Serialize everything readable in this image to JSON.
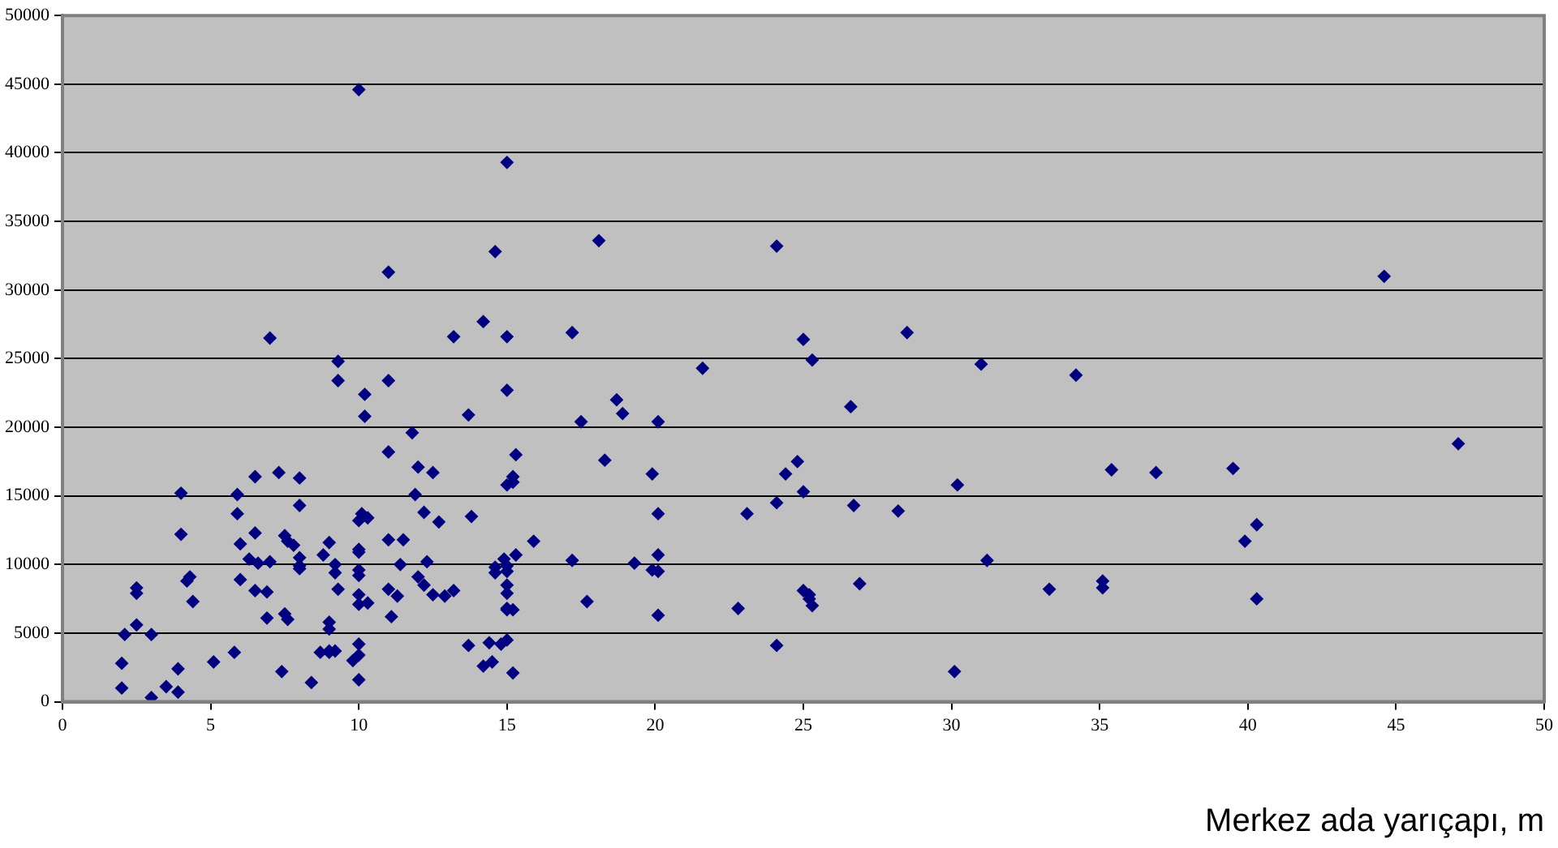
{
  "chart_data": {
    "type": "scatter",
    "xlabel": "Merkez ada yarıçapı, m",
    "color": "#000080",
    "marker": "diamond",
    "grid": "y",
    "legend": false,
    "xlim": [
      0,
      50
    ],
    "xticks": [
      0,
      5,
      10,
      15,
      20,
      25,
      30,
      35,
      40,
      45,
      50
    ],
    "ylim": [
      0,
      50000
    ],
    "yticks": [
      0,
      5000,
      10000,
      15000,
      20000,
      25000,
      30000,
      35000,
      40000,
      45000,
      50000
    ],
    "x": [
      2,
      2,
      2.1,
      2.5,
      2.5,
      2.5,
      3,
      3,
      3.5,
      3.9,
      3.9,
      4,
      4,
      4.2,
      4.3,
      4.4,
      5.1,
      5.8,
      5.9,
      5.9,
      6,
      6,
      6.3,
      6.5,
      6.5,
      6.6,
      6.5,
      6.9,
      6.9,
      7,
      7,
      7.3,
      7.4,
      7.5,
      7.6,
      7.6,
      7.5,
      7.8,
      8,
      8,
      8,
      8,
      8,
      8.4,
      8.7,
      8.8,
      9,
      9,
      9,
      9,
      9,
      9.2,
      9.2,
      9.3,
      9.2,
      9.3,
      9.3,
      9.8,
      10,
      10,
      10,
      10,
      10,
      10,
      10,
      10,
      10,
      10,
      10,
      10.1,
      10.2,
      10.2,
      10.3,
      10.3,
      11,
      11,
      11,
      11,
      11,
      11.3,
      11.1,
      11.4,
      11.5,
      11.8,
      11.9,
      12,
      12,
      12.2,
      12.3,
      12.2,
      12.5,
      12.5,
      12.7,
      12.9,
      13.2,
      13.2,
      13.7,
      13.7,
      13.8,
      14.2,
      14.2,
      14.4,
      14.5,
      14.6,
      14.6,
      14.6,
      14.9,
      15,
      15,
      15,
      15,
      15,
      15,
      15,
      15,
      15,
      15,
      15,
      14.8,
      15.2,
      15.2,
      15.2,
      15.3,
      15.2,
      15.3,
      15.9,
      17.2,
      17.2,
      17.5,
      17.7,
      18.1,
      18.3,
      18.7,
      18.9,
      19.3,
      19.9,
      19.9,
      20.1,
      20.1,
      20.1,
      20.1,
      20.1,
      21.6,
      22.8,
      23.1,
      24.1,
      24.1,
      24.1,
      24.4,
      24.8,
      25,
      25,
      25,
      25.2,
      25.2,
      25.3,
      25.3,
      26.6,
      26.7,
      26.9,
      28.2,
      28.5,
      30.1,
      30.2,
      31,
      31.2,
      33.3,
      34.2,
      35.1,
      35.1,
      35.4,
      36.9,
      39.5,
      39.9,
      40.3,
      40.3,
      44.6,
      47.1
    ],
    "values": [
      2800,
      1000,
      4900,
      7900,
      8300,
      5600,
      4900,
      300,
      1100,
      700,
      2400,
      15200,
      12200,
      8800,
      9100,
      7300,
      2900,
      3600,
      15100,
      13700,
      11500,
      8900,
      10400,
      16400,
      12300,
      10100,
      8100,
      6100,
      8000,
      26500,
      10200,
      16700,
      2200,
      12100,
      11700,
      6000,
      6400,
      11400,
      16300,
      14300,
      10500,
      9700,
      9900,
      1400,
      3600,
      10700,
      11600,
      5800,
      5300,
      3600,
      3700,
      10000,
      9400,
      8200,
      3700,
      24800,
      23400,
      3000,
      44600,
      13200,
      11100,
      10900,
      9600,
      9200,
      7800,
      7100,
      4200,
      3400,
      1600,
      13700,
      22400,
      20800,
      13400,
      7200,
      31300,
      23400,
      18200,
      11800,
      8200,
      7700,
      6200,
      10000,
      11800,
      19600,
      15100,
      17100,
      9100,
      13800,
      10200,
      8500,
      16700,
      7800,
      13100,
      7700,
      8100,
      26600,
      20900,
      4100,
      13500,
      27700,
      2600,
      4300,
      2900,
      32800,
      9800,
      9400,
      10400,
      39300,
      26600,
      22700,
      15800,
      9900,
      9500,
      8500,
      7900,
      6800,
      6700,
      4500,
      4200,
      16400,
      16000,
      6700,
      18000,
      2100,
      10700,
      11700,
      26900,
      10300,
      20400,
      7300,
      33600,
      17600,
      22000,
      21000,
      10100,
      16600,
      9600,
      20400,
      13700,
      10700,
      9500,
      6300,
      24300,
      6800,
      13700,
      33200,
      14500,
      4100,
      16600,
      17500,
      26400,
      15300,
      8100,
      7800,
      7500,
      24900,
      7000,
      21500,
      14300,
      8600,
      13900,
      26900,
      2200,
      15800,
      24600,
      10300,
      8200,
      23800,
      8300,
      8800,
      16900,
      16700,
      17000,
      11700,
      12900,
      7500,
      31000,
      18800
    ]
  }
}
